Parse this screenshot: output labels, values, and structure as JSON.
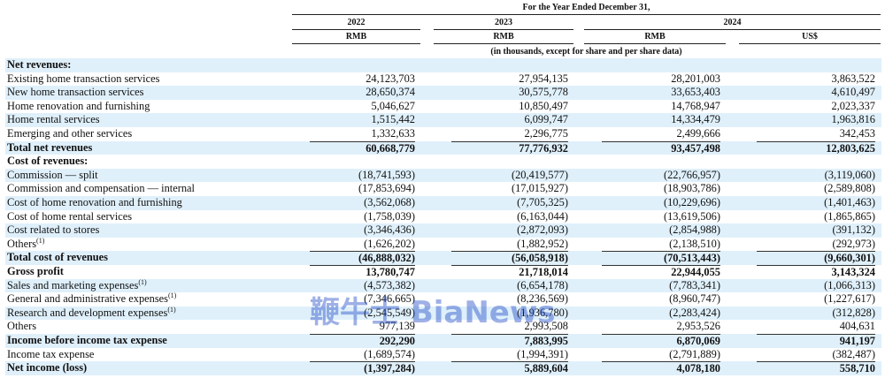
{
  "header": {
    "period": "For the Year Ended December 31,",
    "years": [
      "2022",
      "2023",
      "2024"
    ],
    "currencies": [
      "RMB",
      "RMB",
      "RMB",
      "US$"
    ],
    "note": "(in thousands, except for share and per share data)"
  },
  "table": {
    "rows": [
      {
        "label": "Net revenues:",
        "style": "section",
        "values": []
      },
      {
        "label": "Existing home transaction services",
        "values": [
          "24,123,703",
          "27,954,135",
          "28,201,003",
          "3,863,522"
        ]
      },
      {
        "label": "New home transaction services",
        "values": [
          "28,650,374",
          "30,575,778",
          "33,653,403",
          "4,610,497"
        ]
      },
      {
        "label": "Home renovation and furnishing",
        "values": [
          "5,046,627",
          "10,850,497",
          "14,768,947",
          "2,023,337"
        ]
      },
      {
        "label": "Home rental services",
        "values": [
          "1,515,442",
          "6,099,747",
          "14,334,479",
          "1,963,816"
        ]
      },
      {
        "label": "Emerging and other services",
        "values": [
          "1,332,633",
          "2,296,775",
          "2,499,666",
          "342,453"
        ]
      },
      {
        "label": "Total net revenues",
        "style": "total",
        "values": [
          "60,668,779",
          "77,776,932",
          "93,457,498",
          "12,803,625"
        ]
      },
      {
        "label": "Cost of revenues:",
        "style": "section",
        "values": []
      },
      {
        "label": "Commission — split",
        "values": [
          "(18,741,593)",
          "(20,419,577)",
          "(22,766,957)",
          "(3,119,060)"
        ]
      },
      {
        "label": "Commission and compensation — internal",
        "values": [
          "(17,853,694)",
          "(17,015,927)",
          "(18,903,786)",
          "(2,589,808)"
        ]
      },
      {
        "label": "Cost of home renovation and furnishing",
        "values": [
          "(3,562,068)",
          "(7,705,325)",
          "(10,229,696)",
          "(1,401,463)"
        ]
      },
      {
        "label": "Cost of home rental services",
        "values": [
          "(1,758,039)",
          "(6,163,044)",
          "(13,619,506)",
          "(1,865,865)"
        ]
      },
      {
        "label": "Cost related to stores",
        "values": [
          "(3,346,436)",
          "(2,872,093)",
          "(2,854,988)",
          "(391,132)"
        ]
      },
      {
        "label": "Others",
        "note": "(1)",
        "values": [
          "(1,626,202)",
          "(1,882,952)",
          "(2,138,510)",
          "(292,973)"
        ]
      },
      {
        "label": "Total cost of revenues",
        "style": "total",
        "values": [
          "(46,888,032)",
          "(56,058,918)",
          "(70,513,443)",
          "(9,660,301)"
        ]
      },
      {
        "label": "Gross profit",
        "style": "total",
        "values": [
          "13,780,747",
          "21,718,014",
          "22,944,055",
          "3,143,324"
        ]
      },
      {
        "label": "Sales and marketing expenses",
        "note": "(1)",
        "values": [
          "(4,573,382)",
          "(6,654,178)",
          "(7,783,341)",
          "(1,066,313)"
        ]
      },
      {
        "label": "General and administrative expenses",
        "note": "(1)",
        "values": [
          "(7,346,665)",
          "(8,236,569)",
          "(8,960,747)",
          "(1,227,617)"
        ]
      },
      {
        "label": "Research and development expenses",
        "note": "(1)",
        "values": [
          "(2,545,549)",
          "(1,936,780)",
          "(2,283,424)",
          "(312,828)"
        ]
      },
      {
        "label": "Others",
        "values": [
          "977,139",
          "2,993,508",
          "2,953,526",
          "404,631"
        ]
      },
      {
        "label": "Income before income tax expense",
        "style": "total",
        "values": [
          "292,290",
          "7,883,995",
          "6,870,069",
          "941,197"
        ]
      },
      {
        "label": "Income tax expense",
        "values": [
          "(1,689,574)",
          "(1,994,391)",
          "(2,791,889)",
          "(382,487)"
        ]
      },
      {
        "label": "Net income (loss)",
        "style": "total",
        "values": [
          "(1,397,284)",
          "5,889,604",
          "4,078,180",
          "558,710"
        ]
      }
    ]
  },
  "watermark": "鞭牛士 BiaNews"
}
